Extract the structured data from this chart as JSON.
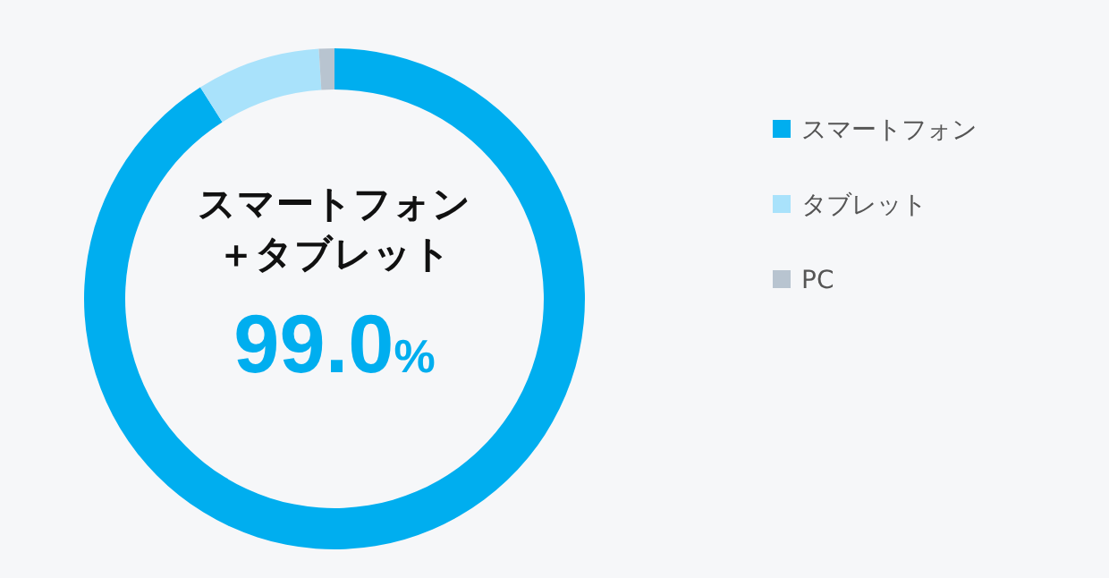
{
  "chart_data": {
    "type": "donut",
    "categories": [
      "スマートフォン",
      "タブレット",
      "PC"
    ],
    "values": [
      91.0,
      8.0,
      1.0
    ],
    "colors": [
      "#00aeef",
      "#a9e2fb",
      "#b8c4d0"
    ],
    "legend": "right",
    "annotations": [
      "スマートフォン＋タブレット",
      "99.0%"
    ]
  }
}
